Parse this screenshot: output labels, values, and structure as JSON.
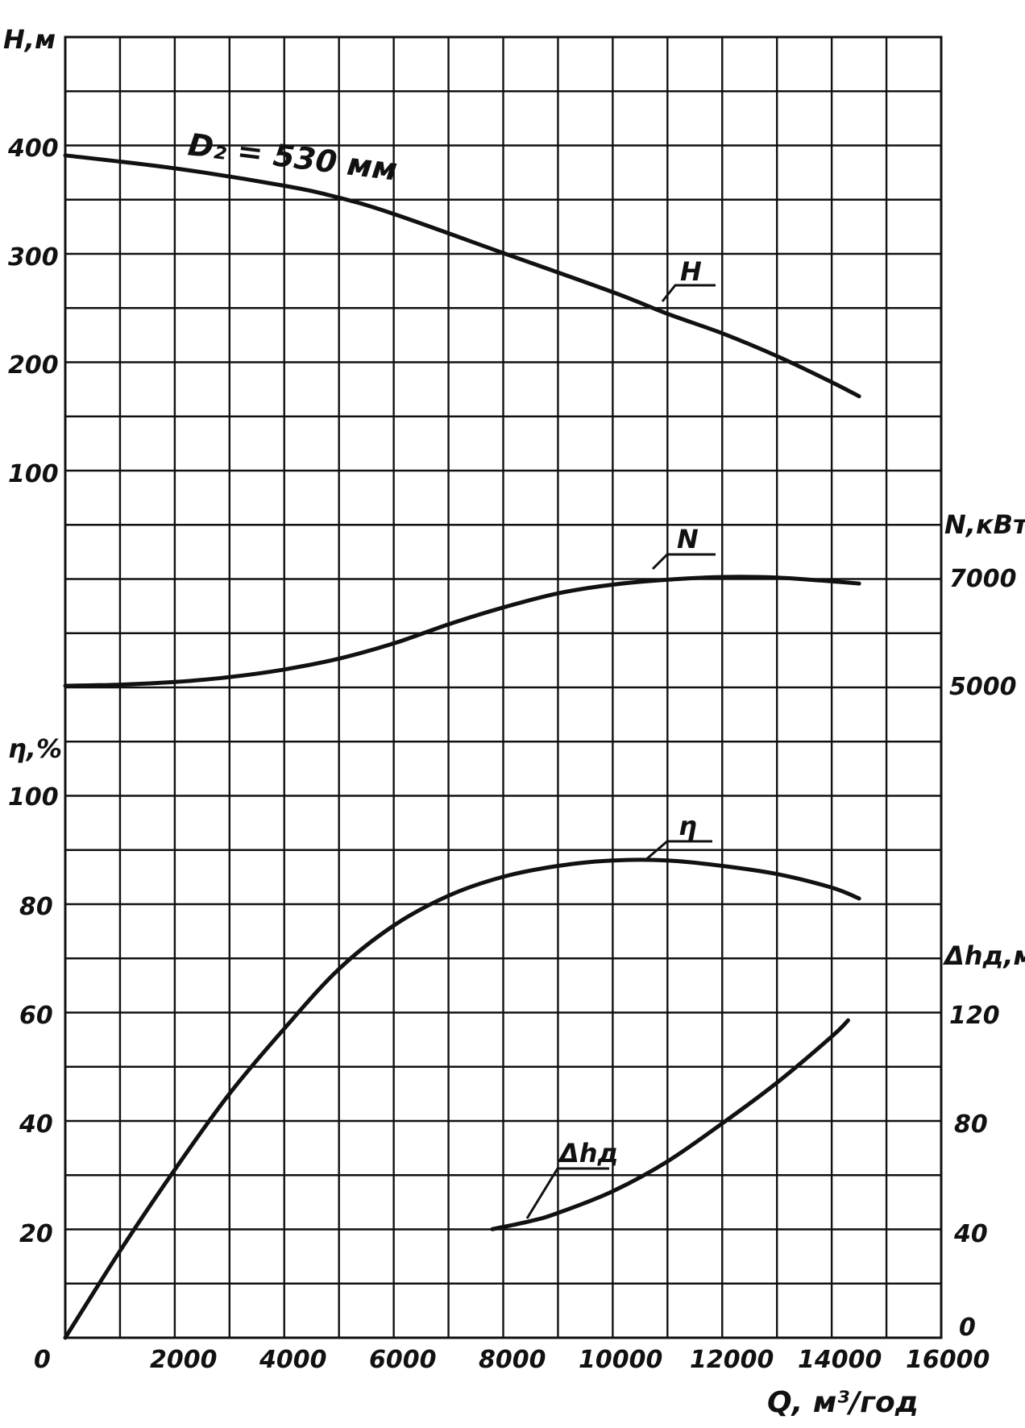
{
  "chart_data": {
    "type": "line",
    "title": "",
    "x_axis": {
      "label": "Q, м³/год",
      "range": [
        0,
        16000
      ],
      "ticks": [
        0,
        2000,
        4000,
        6000,
        8000,
        10000,
        12000,
        14000,
        16000
      ],
      "tick_labels": [
        "0",
        "2000",
        "4000",
        "6000",
        "8000",
        "10000",
        "12000",
        "14000",
        "16000"
      ]
    },
    "axes": {
      "H": {
        "label": "Н,м",
        "side": "left",
        "ticks": [
          "100",
          "200",
          "300",
          "400"
        ]
      },
      "N": {
        "label": "N,кВт",
        "side": "right",
        "ticks": [
          "5000",
          "7000"
        ]
      },
      "eta": {
        "label": "η,%",
        "side": "left",
        "ticks": [
          "20",
          "40",
          "60",
          "80",
          "100"
        ]
      },
      "dh": {
        "label": "Δhд,м",
        "side": "right",
        "ticks": [
          "0",
          "40",
          "80",
          "120"
        ]
      }
    },
    "grid": true,
    "annotation": "D₂ = 530 мм",
    "series": [
      {
        "name": "Н",
        "axis": "H",
        "unit": "м",
        "x": [
          0,
          2000,
          4000,
          5000,
          6000,
          8000,
          10000,
          11000,
          12000,
          13000,
          14000,
          14500
        ],
        "y": [
          392,
          380,
          364,
          353,
          338,
          302,
          266,
          246,
          228,
          207,
          183,
          170
        ]
      },
      {
        "name": "N",
        "axis": "N",
        "unit": "кВт",
        "x": [
          0,
          1000,
          2000,
          3000,
          4000,
          5000,
          6000,
          7000,
          8000,
          9000,
          10000,
          11000,
          12000,
          13000,
          14000,
          14500
        ],
        "y": [
          5000,
          5020,
          5070,
          5160,
          5300,
          5500,
          5780,
          6130,
          6440,
          6700,
          6860,
          6950,
          7000,
          6990,
          6920,
          6880
        ]
      },
      {
        "name": "η",
        "axis": "eta",
        "unit": "%",
        "x": [
          0,
          1000,
          2000,
          3000,
          4000,
          5000,
          6000,
          7000,
          8000,
          9000,
          10000,
          11000,
          12000,
          13000,
          14000,
          14500
        ],
        "y": [
          0,
          16,
          31,
          45,
          57,
          68,
          76,
          81.5,
          85,
          87,
          88,
          88,
          87,
          85.5,
          83,
          81
        ]
      },
      {
        "name": "Δhд",
        "axis": "dh",
        "unit": "м",
        "x": [
          7800,
          8500,
          9000,
          10000,
          11000,
          12000,
          13000,
          14000,
          14300
        ],
        "y": [
          40,
          43,
          46,
          54,
          65,
          79,
          94,
          111,
          117
        ]
      }
    ]
  }
}
